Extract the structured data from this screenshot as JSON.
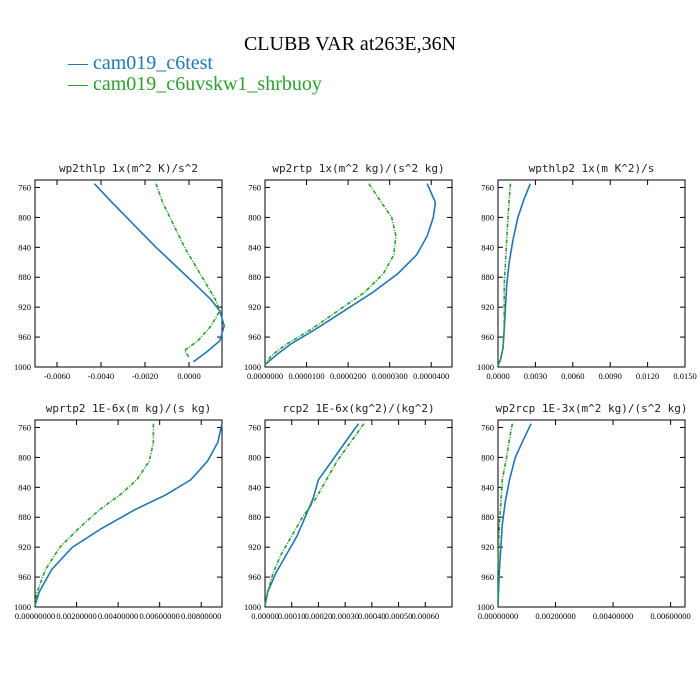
{
  "figure": {
    "title": "CLUBB VAR at263E,36N",
    "legend": [
      {
        "label": "— cam019_c6test",
        "color": "#1f77b4"
      },
      {
        "label": "— cam019_c6uvskw1_shrbuoy",
        "color": "#2ca02c"
      }
    ]
  },
  "chart_data": [
    {
      "type": "line",
      "title": "wp2thlp  1x(m^2 K)/s^2",
      "xlim": [
        -0.007,
        0.0015
      ],
      "ylim": [
        1000,
        750
      ],
      "xticks": [
        -0.006,
        -0.004,
        -0.002,
        0.0
      ],
      "xtick_labels": [
        "-0.0060",
        "-0.0040",
        "-0.0020",
        "0.0000"
      ],
      "yticks": [
        760,
        800,
        840,
        880,
        920,
        960,
        1000
      ],
      "series": [
        {
          "name": "cam019_c6test",
          "color": "#1f77b4",
          "x": [
            -0.0043,
            -0.0035,
            -0.0025,
            -0.0015,
            -0.0006,
            0.0003,
            0.001,
            0.0014,
            0.0016,
            0.0014,
            0.0008,
            0.0002
          ],
          "y": [
            755,
            780,
            810,
            840,
            865,
            890,
            910,
            925,
            945,
            965,
            980,
            993
          ]
        },
        {
          "name": "cam019_c6uvskw1_shrbuoy",
          "color": "#2ca02c",
          "x": [
            -0.0015,
            -0.0012,
            -0.0007,
            -0.0002,
            0.0003,
            0.0008,
            0.0012,
            0.0014,
            0.001,
            0.0004,
            -0.0002,
            0.0
          ],
          "y": [
            755,
            780,
            810,
            840,
            865,
            890,
            910,
            925,
            945,
            965,
            978,
            987
          ]
        }
      ]
    },
    {
      "type": "line",
      "title": "wp2rtp  1x(m^2 kg)/(s^2 kg)",
      "xlim": [
        0.0,
        4.5e-05
      ],
      "ylim": [
        1000,
        750
      ],
      "xticks": [
        0.0,
        1e-05,
        2e-05,
        3e-05,
        4e-05
      ],
      "xtick_labels": [
        "0.0000000",
        "0.0000100",
        "0.0000200",
        "0.0000300",
        "0.0000400"
      ],
      "yticks": [
        760,
        800,
        840,
        880,
        920,
        960,
        1000
      ],
      "series": [
        {
          "name": "cam019_c6test",
          "color": "#1f77b4",
          "x": [
            3.9e-05,
            4.1e-05,
            4.05e-05,
            3.9e-05,
            3.65e-05,
            3.2e-05,
            2.6e-05,
            1.9e-05,
            1.2e-05,
            6e-06,
            2.5e-06,
            0.0
          ],
          "y": [
            755,
            780,
            800,
            825,
            850,
            875,
            900,
            925,
            950,
            970,
            985,
            997
          ]
        },
        {
          "name": "cam019_c6uvskw1_shrbuoy",
          "color": "#2ca02c",
          "x": [
            2.5e-05,
            2.8e-05,
            3.05e-05,
            3.15e-05,
            3.1e-05,
            2.85e-05,
            2.4e-05,
            1.75e-05,
            1.1e-05,
            5e-06,
            1.5e-06,
            0.0
          ],
          "y": [
            755,
            780,
            800,
            825,
            850,
            875,
            900,
            925,
            950,
            970,
            985,
            997
          ]
        }
      ]
    },
    {
      "type": "line",
      "title": "wpthlp2  1x(m K^2)/s",
      "xlim": [
        0.0,
        0.015
      ],
      "ylim": [
        1000,
        750
      ],
      "xticks": [
        0.0,
        0.003,
        0.006,
        0.009,
        0.012,
        0.015
      ],
      "xtick_labels": [
        "0.0000",
        "0.0030",
        "0.0060",
        "0.0090",
        "0.0120",
        "0.0150"
      ],
      "yticks": [
        760,
        800,
        840,
        880,
        920,
        960,
        1000
      ],
      "series": [
        {
          "name": "cam019_c6test",
          "color": "#1f77b4",
          "x": [
            0.0026,
            0.0021,
            0.0016,
            0.0012,
            0.0009,
            0.0007,
            0.0006,
            0.0005,
            0.0004,
            0.0002,
            0.0
          ],
          "y": [
            755,
            775,
            800,
            830,
            860,
            890,
            920,
            950,
            975,
            990,
            998
          ]
        },
        {
          "name": "cam019_c6uvskw1_shrbuoy",
          "color": "#2ca02c",
          "x": [
            0.001,
            0.0009,
            0.0008,
            0.0007,
            0.0006,
            0.0005,
            0.0005,
            0.0005,
            0.0004,
            0.0002,
            0.0
          ],
          "y": [
            755,
            775,
            800,
            830,
            860,
            890,
            920,
            950,
            975,
            990,
            998
          ]
        }
      ]
    },
    {
      "type": "line",
      "title": "wprtp2  1E-6x(m kg)/(s kg)",
      "xlim": [
        0.0,
        0.009
      ],
      "ylim": [
        1000,
        750
      ],
      "xticks": [
        0.0,
        0.002,
        0.004,
        0.006,
        0.008
      ],
      "xtick_labels": [
        "0.00000000",
        "0.00200000",
        "0.00400000",
        "0.00600000",
        "0.00800000"
      ],
      "yticks": [
        760,
        800,
        840,
        880,
        920,
        960,
        1000
      ],
      "series": [
        {
          "name": "cam019_c6test",
          "color": "#1f77b4",
          "x": [
            0.009,
            0.0088,
            0.0083,
            0.0075,
            0.0063,
            0.0048,
            0.0032,
            0.0018,
            0.0008,
            0.0002,
            0.0
          ],
          "y": [
            755,
            780,
            805,
            830,
            850,
            870,
            895,
            920,
            950,
            980,
            998
          ]
        },
        {
          "name": "cam019_c6uvskw1_shrbuoy",
          "color": "#2ca02c",
          "x": [
            0.0057,
            0.0057,
            0.0055,
            0.0049,
            0.0041,
            0.0031,
            0.0021,
            0.0012,
            0.0005,
            0.0001,
            0.0
          ],
          "y": [
            755,
            780,
            805,
            830,
            850,
            870,
            895,
            920,
            950,
            980,
            998
          ]
        }
      ]
    },
    {
      "type": "line",
      "title": "rcp2  1E-6x(kg^2)/(kg^2)",
      "xlim": [
        0.0,
        0.0007
      ],
      "ylim": [
        1000,
        750
      ],
      "xticks": [
        0.0,
        0.0001,
        0.0002,
        0.0003,
        0.0004,
        0.0005,
        0.0006
      ],
      "xtick_labels": [
        "0.00000",
        "0.00010",
        "0.00020",
        "0.00030",
        "0.00040",
        "0.00050",
        "0.00060"
      ],
      "yticks": [
        760,
        800,
        840,
        880,
        920,
        960,
        1000
      ],
      "series": [
        {
          "name": "cam019_c6test",
          "color": "#1f77b4",
          "x": [
            0.00035,
            0.0003,
            0.00025,
            0.0002,
            0.00018,
            0.00015,
            0.00012,
            8e-05,
            4e-05,
            1e-05,
            0.0
          ],
          "y": [
            755,
            780,
            805,
            830,
            855,
            880,
            905,
            930,
            955,
            980,
            998
          ]
        },
        {
          "name": "cam019_c6uvskw1_shrbuoy",
          "color": "#2ca02c",
          "x": [
            0.00037,
            0.00032,
            0.00027,
            0.00023,
            0.00019,
            0.00014,
            0.0001,
            6e-05,
            3e-05,
            1e-05,
            0.0
          ],
          "y": [
            755,
            780,
            805,
            830,
            855,
            880,
            905,
            930,
            955,
            980,
            998
          ]
        }
      ]
    },
    {
      "type": "line",
      "title": "wp2rcp  1E-3x(m^2 kg)/(s^2 kg)",
      "xlim": [
        0.0,
        0.0065
      ],
      "ylim": [
        1000,
        750
      ],
      "xticks": [
        0.0,
        0.002,
        0.004,
        0.006
      ],
      "xtick_labels": [
        "0.00000000",
        "0.00200000",
        "0.00400000",
        "0.00600000"
      ],
      "yticks": [
        760,
        800,
        840,
        880,
        920,
        960,
        1000
      ],
      "series": [
        {
          "name": "cam019_c6test",
          "color": "#1f77b4",
          "x": [
            0.00115,
            0.0009,
            0.0006,
            0.0004,
            0.00025,
            0.00015,
            0.0001,
            5e-05,
            0.0
          ],
          "y": [
            755,
            775,
            800,
            830,
            860,
            890,
            920,
            950,
            998
          ]
        },
        {
          "name": "cam019_c6uvskw1_shrbuoy",
          "color": "#2ca02c",
          "x": [
            0.0005,
            0.0004,
            0.0003,
            0.00015,
            0.0001,
            5e-05,
            2e-05,
            0.0,
            0.0
          ],
          "y": [
            755,
            775,
            800,
            830,
            860,
            890,
            920,
            950,
            998
          ]
        }
      ]
    }
  ]
}
